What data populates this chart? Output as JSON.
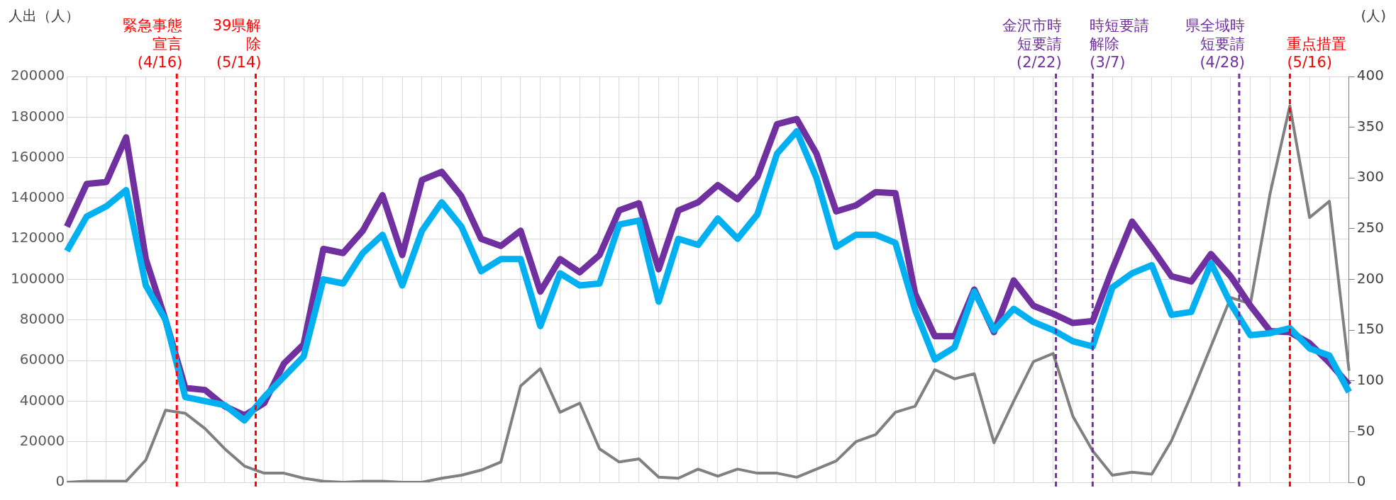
{
  "chart_data": {
    "type": "line",
    "ylabel": "人出（人）",
    "y2label": "(人)",
    "categories": [
      null,
      null,
      null,
      null,
      null,
      null,
      null,
      null,
      null,
      null,
      null,
      null,
      null,
      null,
      null,
      null,
      null,
      null,
      null,
      null,
      null,
      null,
      null,
      null,
      null,
      null,
      null,
      null,
      null,
      null,
      null,
      null,
      null,
      null,
      null,
      null,
      null,
      null,
      null,
      null,
      null,
      null,
      null,
      null,
      null,
      null,
      null,
      null,
      null,
      null,
      null,
      null,
      null,
      null,
      null,
      null,
      null,
      null,
      null,
      null,
      null,
      null,
      null,
      null,
      null,
      null
    ],
    "series": [
      {
        "color": "#00b0f0",
        "values": [
          114000,
          131000,
          136000,
          144000,
          97000,
          80000,
          42000,
          40000,
          38000,
          30500,
          42000,
          52000,
          62000,
          100000,
          98000,
          113000,
          122000,
          97000,
          124000,
          138000,
          126000,
          104000,
          110000,
          110000,
          77000,
          103000,
          97000,
          98000,
          127000,
          129000,
          89000,
          120000,
          117000,
          130000,
          120000,
          132000,
          162000,
          173000,
          150000,
          116000,
          122000,
          122000,
          118000,
          85000,
          60500,
          66500,
          94000,
          75000,
          85500,
          79000,
          75000,
          69500,
          67000,
          96000,
          103000,
          107000,
          82500,
          84000,
          108000,
          88000,
          72500,
          73500,
          76000,
          66000,
          62500,
          44500
        ]
      },
      {
        "color": "#7030a0",
        "values": [
          126000,
          147000,
          148000,
          170000,
          110000,
          80000,
          46500,
          45500,
          37500,
          33000,
          39000,
          58500,
          68000,
          115000,
          113000,
          124000,
          141500,
          112000,
          149000,
          153000,
          141000,
          120000,
          116500,
          124000,
          94000,
          110000,
          103500,
          112000,
          134000,
          137500,
          105000,
          134000,
          138000,
          146500,
          139500,
          150500,
          176500,
          179000,
          162000,
          133500,
          136500,
          143000,
          142500,
          93000,
          72000,
          72000,
          95000,
          74000,
          99500,
          87000,
          83000,
          78500,
          79500,
          105000,
          128500,
          115500,
          101500,
          99000,
          112500,
          101500,
          87000,
          74500,
          74000,
          68500,
          59000,
          48000
        ]
      },
      {
        "color": "#808080",
        "axis": "y2",
        "values": [
          0,
          1,
          1,
          1,
          22,
          71,
          68,
          53,
          33,
          16,
          9,
          9,
          4,
          1,
          0,
          1,
          1,
          0,
          0,
          4,
          7,
          12,
          20,
          95,
          112,
          69,
          78,
          33,
          20,
          23,
          5,
          4,
          13,
          6,
          13,
          9,
          9,
          5,
          13,
          21,
          40,
          47,
          69,
          75,
          111,
          102,
          107,
          39,
          80,
          119,
          127,
          65,
          31,
          7,
          10,
          8,
          41,
          86,
          134,
          182,
          176,
          285,
          371,
          261,
          277,
          110
        ]
      }
    ],
    "ylim": [
      0,
      200000
    ],
    "yticks": [
      0,
      20000,
      40000,
      60000,
      80000,
      100000,
      120000,
      140000,
      160000,
      180000,
      200000
    ],
    "y2lim": [
      0,
      400
    ],
    "y2ticks": [
      0,
      50,
      100,
      150,
      200,
      250,
      300,
      350,
      400
    ],
    "grid": true,
    "tick_labels": "y",
    "marker": "none",
    "line_style": "solid",
    "annotations": [
      "緊急事態宣言(4/16)",
      "39県解除(5/14)",
      "金沢市時短要請(2/22)",
      "時短要請解除(3/7)",
      "県全域時短要請(4/28)",
      "重点措置(5/16)"
    ]
  }
}
